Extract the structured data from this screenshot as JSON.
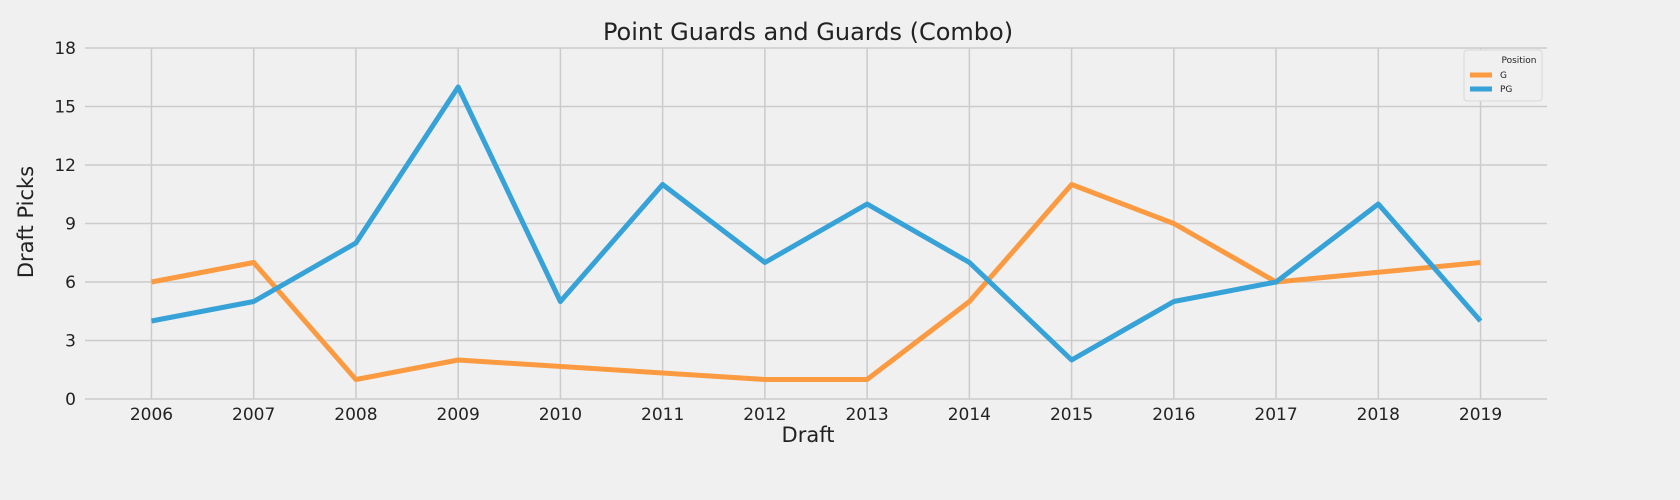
{
  "chart_data": {
    "type": "line",
    "title": "Point Guards and Guards (Combo)",
    "xlabel": "Draft",
    "ylabel": "Draft Picks",
    "x": [
      2006,
      2007,
      2008,
      2009,
      2010,
      2011,
      2012,
      2013,
      2014,
      2015,
      2016,
      2017,
      2018,
      2019
    ],
    "x_tick_labels": [
      "2006",
      "2007",
      "2008",
      "2009",
      "2010",
      "2011",
      "2012",
      "2013",
      "2014",
      "2015",
      "2016",
      "2017",
      "2018",
      "2019"
    ],
    "y_ticks": [
      0,
      3,
      6,
      9,
      12,
      15,
      18
    ],
    "y_tick_labels": [
      "0",
      "3",
      "6",
      "9",
      "12",
      "15",
      "18"
    ],
    "ylim": [
      0,
      18
    ],
    "xlim": [
      2005.35,
      2019.65
    ],
    "grid": true,
    "legend": {
      "title": "Position",
      "placement": "top-right"
    },
    "series": [
      {
        "name": "G",
        "color": "#fb9a40",
        "points": [
          [
            2006,
            6
          ],
          [
            2007,
            7
          ],
          [
            2008,
            1
          ],
          [
            2009,
            2
          ],
          [
            2012,
            1
          ],
          [
            2013,
            1
          ],
          [
            2014,
            5
          ],
          [
            2015,
            11
          ],
          [
            2016,
            9
          ],
          [
            2017,
            6
          ],
          [
            2019,
            7
          ]
        ]
      },
      {
        "name": "PG",
        "color": "#36a2d7",
        "points": [
          [
            2006,
            4
          ],
          [
            2007,
            5
          ],
          [
            2008,
            8
          ],
          [
            2009,
            16
          ],
          [
            2010,
            5
          ],
          [
            2011,
            11
          ],
          [
            2012,
            7
          ],
          [
            2013,
            10
          ],
          [
            2014,
            7
          ],
          [
            2015,
            2
          ],
          [
            2016,
            5
          ],
          [
            2017,
            6
          ],
          [
            2018,
            10
          ],
          [
            2019,
            4
          ]
        ]
      }
    ]
  }
}
